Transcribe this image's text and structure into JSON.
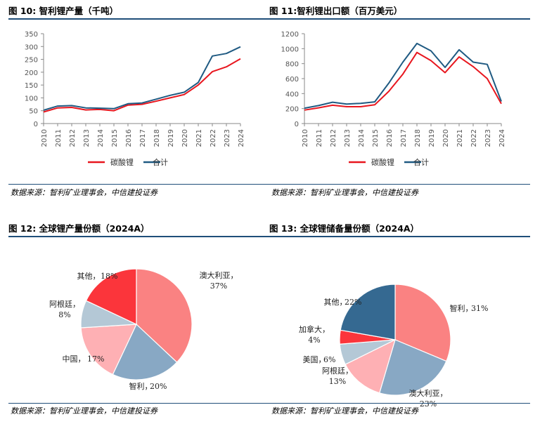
{
  "colors": {
    "red": "#e8161e",
    "blue": "#1f5a82",
    "rule": "#1f4e79"
  },
  "source_text": "数据来源：智利矿业理事会，中信建投证券",
  "chart_data": [
    {
      "type": "line",
      "label": "图 10: 智利锂产量（千吨）",
      "x": [
        "2010",
        "2011",
        "2012",
        "2013",
        "2014",
        "2015",
        "2016",
        "2017",
        "2018",
        "2019",
        "2020",
        "2021",
        "2022",
        "2023",
        "2024"
      ],
      "ylim": [
        0,
        350
      ],
      "yticks": [
        0,
        50,
        100,
        150,
        200,
        250,
        300,
        350
      ],
      "series": [
        {
          "name": "碳酸锂",
          "color": "#e8161e",
          "values": [
            45,
            61,
            63,
            53,
            55,
            50,
            72,
            75,
            87,
            100,
            113,
            150,
            202,
            221,
            252
          ]
        },
        {
          "name": "合计",
          "color": "#1f5a82",
          "values": [
            52,
            68,
            70,
            61,
            60,
            58,
            77,
            80,
            95,
            110,
            122,
            160,
            263,
            273,
            299
          ]
        }
      ]
    },
    {
      "type": "line",
      "label": "图 11:智利锂出口额（百万美元）",
      "x": [
        "2010",
        "2011",
        "2012",
        "2013",
        "2014",
        "2015",
        "2016",
        "2017",
        "2018",
        "2019",
        "2020",
        "2021",
        "2022",
        "2023",
        "2024"
      ],
      "ylim": [
        0,
        1200
      ],
      "yticks": [
        0,
        200,
        400,
        600,
        800,
        1000,
        1200
      ],
      "series": [
        {
          "name": "碳酸锂",
          "color": "#e8161e",
          "values": [
            180,
            210,
            245,
            225,
            225,
            250,
            430,
            660,
            950,
            840,
            680,
            890,
            760,
            600,
            265
          ]
        },
        {
          "name": "合计",
          "color": "#1f5a82",
          "values": [
            205,
            240,
            285,
            260,
            270,
            290,
            540,
            820,
            1070,
            970,
            750,
            985,
            820,
            790,
            295
          ]
        }
      ]
    },
    {
      "type": "pie",
      "label": "图 12: 全球锂产量份额（2024A）",
      "slices": [
        {
          "name": "澳大利亚",
          "value": 37,
          "display": "37%",
          "color": "#fa8282"
        },
        {
          "name": "智利",
          "value": 20,
          "display": "20%",
          "color": "#88a8c4"
        },
        {
          "name": "中国",
          "value": 17,
          "display": "17%",
          "color": "#feb0b4"
        },
        {
          "name": "阿根廷",
          "value": 8,
          "display": "8%",
          "color": "#b4c8d6"
        },
        {
          "name": "其他",
          "value": 18,
          "display": "18%",
          "color": "#fb353b"
        }
      ]
    },
    {
      "type": "pie",
      "label": "图 13: 全球锂储备量份额（2024A）",
      "slices": [
        {
          "name": "智利",
          "value": 31,
          "display": "31%",
          "color": "#fa8282"
        },
        {
          "name": "澳大利亚",
          "value": 23,
          "display": "23%",
          "color": "#88a8c4"
        },
        {
          "name": "阿根廷",
          "value": 13,
          "display": "13%",
          "color": "#feb0b4"
        },
        {
          "name": "美国",
          "value": 6,
          "display": "6%",
          "color": "#b4c8d6"
        },
        {
          "name": "加拿大",
          "value": 4,
          "display": "4%",
          "color": "#fb353b"
        },
        {
          "name": "其他",
          "value": 22,
          "display": "22%",
          "color": "#356991"
        }
      ]
    }
  ]
}
